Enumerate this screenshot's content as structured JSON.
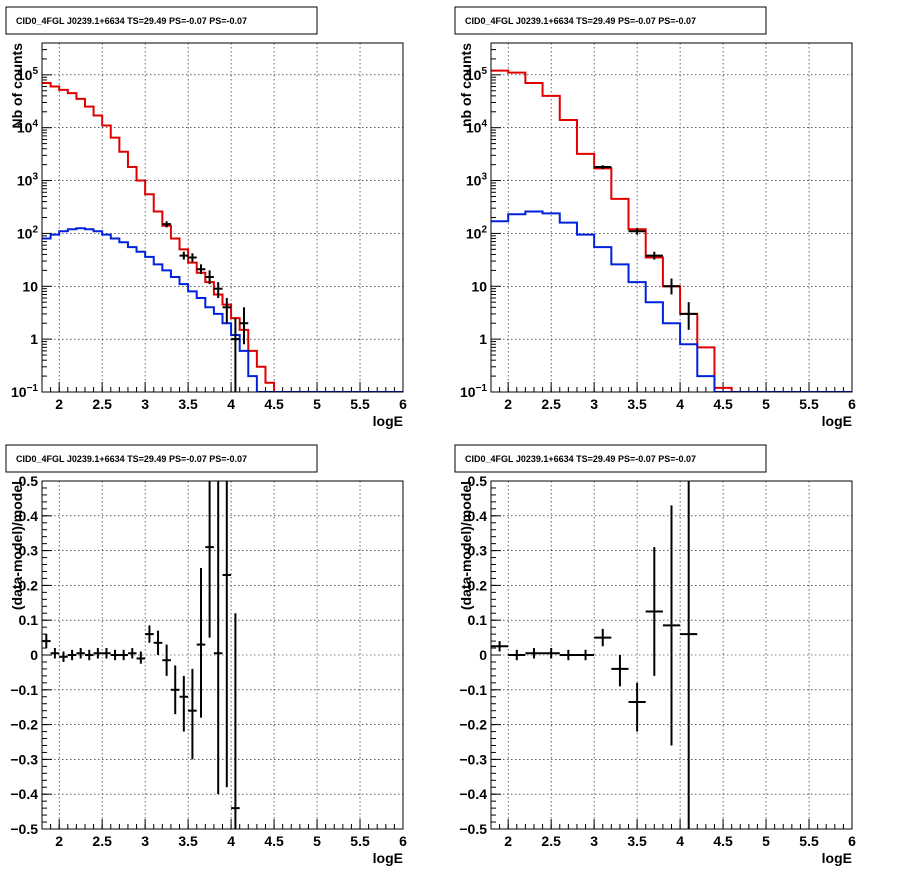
{
  "colors": {
    "data": "#000000",
    "model_total": "#e00000",
    "model_background": "#0022dd"
  },
  "chart_data": [
    {
      "type": "line",
      "title": "CID0_4FGL J0239.1+6634 TS=29.49 PS=-0.07 PS=-0.07",
      "xlabel": "logE",
      "ylabel": "Nb of counts",
      "xlim": [
        1.8,
        6.0
      ],
      "ylim": [
        0.1,
        400000
      ],
      "yscale": "log",
      "grid": true,
      "xticks": [
        "2",
        "2.5",
        "3",
        "3.5",
        "4",
        "4.5",
        "5",
        "5.5",
        "6"
      ],
      "yticks": [
        "10^-1",
        "1",
        "10",
        "10^2",
        "10^3",
        "10^4",
        "10^5"
      ],
      "bin_edges": [
        1.8,
        1.9,
        2.0,
        2.1,
        2.2,
        2.3,
        2.4,
        2.5,
        2.6,
        2.7,
        2.8,
        2.9,
        3.0,
        3.1,
        3.2,
        3.3,
        3.4,
        3.5,
        3.6,
        3.7,
        3.8,
        3.9,
        4.0,
        4.1,
        4.2,
        4.3,
        4.4,
        4.5,
        4.6,
        4.7,
        4.8,
        4.9,
        5.0,
        5.1,
        5.2,
        5.3,
        5.4,
        5.5,
        5.6,
        5.7,
        5.8,
        5.9,
        6.0
      ],
      "series": [
        {
          "role": "model_total",
          "color": "#e00000",
          "values": [
            70000,
            60000,
            52000,
            45000,
            35000,
            25000,
            17000,
            11000,
            6500,
            3500,
            1800,
            1000,
            550,
            260,
            140,
            80,
            50,
            28,
            18,
            12,
            7,
            4.5,
            2.5,
            1.5,
            0.6,
            0.3,
            0.15,
            0.1,
            0.08,
            0.08,
            0.08,
            0.08,
            0.08,
            0.08,
            0.08,
            0.08,
            0.08,
            0.08,
            0.08,
            0.08,
            0.08,
            0.08
          ]
        },
        {
          "role": "model_background",
          "color": "#0022dd",
          "values": [
            80,
            95,
            110,
            120,
            125,
            120,
            110,
            95,
            80,
            68,
            55,
            45,
            36,
            26,
            20,
            15,
            11,
            8,
            6,
            4,
            3,
            2,
            1.2,
            0.6,
            0.2,
            0.08,
            0.08,
            0.08,
            0.08,
            0.08,
            0.08,
            0.08,
            0.08,
            0.08,
            0.08,
            0.08,
            0.08,
            0.08,
            0.08,
            0.08,
            0.08,
            0.08
          ]
        },
        {
          "role": "data",
          "color": "#000000",
          "points": [
            {
              "x": 3.25,
              "y": 150,
              "ylo": 130,
              "yhi": 170
            },
            {
              "x": 3.45,
              "y": 38,
              "ylo": 32,
              "yhi": 45
            },
            {
              "x": 3.55,
              "y": 35,
              "ylo": 29,
              "yhi": 42
            },
            {
              "x": 3.65,
              "y": 21,
              "ylo": 17,
              "yhi": 26
            },
            {
              "x": 3.75,
              "y": 15,
              "ylo": 11,
              "yhi": 20
            },
            {
              "x": 3.85,
              "y": 9,
              "ylo": 6,
              "yhi": 12
            },
            {
              "x": 3.95,
              "y": 4,
              "ylo": 2,
              "yhi": 6
            },
            {
              "x": 4.05,
              "y": 1,
              "ylo": 0.1,
              "yhi": 2.5
            },
            {
              "x": 4.15,
              "y": 2,
              "ylo": 0.8,
              "yhi": 4
            }
          ]
        }
      ]
    },
    {
      "type": "line",
      "title": "CID0_4FGL J0239.1+6634 TS=29.49 PS=-0.07 PS=-0.07",
      "xlabel": "logE",
      "ylabel": "nb of counts",
      "xlim": [
        1.8,
        6.0
      ],
      "ylim": [
        0.1,
        400000
      ],
      "yscale": "log",
      "grid": true,
      "xticks": [
        "2",
        "2.5",
        "3",
        "3.5",
        "4",
        "4.5",
        "5",
        "5.5",
        "6"
      ],
      "yticks": [
        "10^-1",
        "1",
        "10",
        "10^2",
        "10^3",
        "10^4",
        "10^5"
      ],
      "bin_edges": [
        1.8,
        2.0,
        2.2,
        2.4,
        2.6,
        2.8,
        3.0,
        3.2,
        3.4,
        3.6,
        3.8,
        4.0,
        4.2,
        4.4,
        4.6,
        4.8,
        5.0,
        5.2,
        5.4,
        5.6,
        5.8,
        6.0
      ],
      "series": [
        {
          "role": "model_total",
          "color": "#e00000",
          "values": [
            120000,
            110000,
            70000,
            40000,
            14000,
            3200,
            1700,
            450,
            120,
            35,
            10,
            3,
            0.7,
            0.12,
            0.1,
            0.1,
            0.1,
            0.1,
            0.1,
            0.1,
            0.1
          ]
        },
        {
          "role": "model_background",
          "color": "#0022dd",
          "values": [
            170,
            230,
            260,
            240,
            160,
            95,
            55,
            26,
            12,
            5,
            2,
            0.8,
            0.2,
            0.1,
            0.1,
            0.1,
            0.1,
            0.1,
            0.1,
            0.1,
            0.1
          ]
        },
        {
          "role": "data",
          "color": "#000000",
          "points": [
            {
              "x": 3.1,
              "y": 1800,
              "ylo": 1650,
              "yhi": 1950
            },
            {
              "x": 3.5,
              "y": 110,
              "ylo": 95,
              "yhi": 125
            },
            {
              "x": 3.7,
              "y": 38,
              "ylo": 32,
              "yhi": 45
            },
            {
              "x": 3.9,
              "y": 10,
              "ylo": 7,
              "yhi": 14
            },
            {
              "x": 4.1,
              "y": 3,
              "ylo": 1.5,
              "yhi": 5
            }
          ]
        }
      ]
    },
    {
      "type": "scatter",
      "title": "CID0_4FGL J0239.1+6634 TS=29.49 PS=-0.07 PS=-0.07",
      "xlabel": "logE",
      "ylabel": "(data-model)/model",
      "xlim": [
        1.8,
        6.0
      ],
      "ylim": [
        -0.5,
        0.5
      ],
      "grid": true,
      "xticks": [
        "2",
        "2.5",
        "3",
        "3.5",
        "4",
        "4.5",
        "5",
        "5.5",
        "6"
      ],
      "yticks": [
        "−0.5",
        "−0.4",
        "−0.3",
        "−0.2",
        "−0.1",
        "0",
        "0.1",
        "0.2",
        "0.3",
        "0.4",
        "0.5"
      ],
      "xerr": 0.05,
      "points": [
        {
          "x": 1.85,
          "y": 0.04,
          "ylo": 0.02,
          "yhi": 0.06
        },
        {
          "x": 1.95,
          "y": 0.005,
          "ylo": -0.01,
          "yhi": 0.02
        },
        {
          "x": 2.05,
          "y": -0.005,
          "ylo": -0.02,
          "yhi": 0.01
        },
        {
          "x": 2.15,
          "y": 0.0,
          "ylo": -0.015,
          "yhi": 0.015
        },
        {
          "x": 2.25,
          "y": 0.005,
          "ylo": -0.01,
          "yhi": 0.02
        },
        {
          "x": 2.35,
          "y": 0.0,
          "ylo": -0.015,
          "yhi": 0.015
        },
        {
          "x": 2.45,
          "y": 0.005,
          "ylo": -0.01,
          "yhi": 0.02
        },
        {
          "x": 2.55,
          "y": 0.005,
          "ylo": -0.01,
          "yhi": 0.02
        },
        {
          "x": 2.65,
          "y": 0.0,
          "ylo": -0.015,
          "yhi": 0.015
        },
        {
          "x": 2.75,
          "y": 0.0,
          "ylo": -0.015,
          "yhi": 0.015
        },
        {
          "x": 2.85,
          "y": 0.005,
          "ylo": -0.01,
          "yhi": 0.02
        },
        {
          "x": 2.95,
          "y": -0.01,
          "ylo": -0.025,
          "yhi": 0.01
        },
        {
          "x": 3.05,
          "y": 0.06,
          "ylo": 0.035,
          "yhi": 0.085
        },
        {
          "x": 3.15,
          "y": 0.035,
          "ylo": 0.0,
          "yhi": 0.07
        },
        {
          "x": 3.25,
          "y": -0.015,
          "ylo": -0.06,
          "yhi": 0.03
        },
        {
          "x": 3.35,
          "y": -0.1,
          "ylo": -0.17,
          "yhi": -0.03
        },
        {
          "x": 3.45,
          "y": -0.12,
          "ylo": -0.22,
          "yhi": -0.06
        },
        {
          "x": 3.55,
          "y": -0.16,
          "ylo": -0.3,
          "yhi": -0.04
        },
        {
          "x": 3.65,
          "y": 0.03,
          "ylo": -0.18,
          "yhi": 0.25
        },
        {
          "x": 3.75,
          "y": 0.31,
          "ylo": 0.05,
          "yhi": 0.5
        },
        {
          "x": 3.85,
          "y": 0.005,
          "ylo": -0.4,
          "yhi": 0.5
        },
        {
          "x": 3.95,
          "y": 0.23,
          "ylo": -0.38,
          "yhi": 0.5
        },
        {
          "x": 4.05,
          "y": -0.44,
          "ylo": -0.5,
          "yhi": 0.12
        }
      ]
    },
    {
      "type": "scatter",
      "title": "CID0_4FGL J0239.1+6634 TS=29.49 PS=-0.07 PS=-0.07",
      "xlabel": "logE",
      "ylabel": "(data-model)/model",
      "xlim": [
        1.8,
        6.0
      ],
      "ylim": [
        -0.5,
        0.5
      ],
      "grid": true,
      "xticks": [
        "2",
        "2.5",
        "3",
        "3.5",
        "4",
        "4.5",
        "5",
        "5.5",
        "6"
      ],
      "yticks": [
        "−0.5",
        "−0.4",
        "−0.3",
        "−0.2",
        "−0.1",
        "0",
        "0.1",
        "0.2",
        "0.3",
        "0.4",
        "0.5"
      ],
      "xerr": 0.1,
      "points": [
        {
          "x": 1.9,
          "y": 0.025,
          "ylo": 0.01,
          "yhi": 0.04
        },
        {
          "x": 2.1,
          "y": 0.0,
          "ylo": -0.015,
          "yhi": 0.015
        },
        {
          "x": 2.3,
          "y": 0.005,
          "ylo": -0.01,
          "yhi": 0.02
        },
        {
          "x": 2.5,
          "y": 0.005,
          "ylo": -0.01,
          "yhi": 0.02
        },
        {
          "x": 2.7,
          "y": 0.0,
          "ylo": -0.015,
          "yhi": 0.015
        },
        {
          "x": 2.9,
          "y": 0.0,
          "ylo": -0.015,
          "yhi": 0.015
        },
        {
          "x": 3.1,
          "y": 0.05,
          "ylo": 0.025,
          "yhi": 0.075
        },
        {
          "x": 3.3,
          "y": -0.04,
          "ylo": -0.09,
          "yhi": 0.0
        },
        {
          "x": 3.5,
          "y": -0.135,
          "ylo": -0.22,
          "yhi": -0.08
        },
        {
          "x": 3.7,
          "y": 0.125,
          "ylo": -0.06,
          "yhi": 0.31
        },
        {
          "x": 3.9,
          "y": 0.085,
          "ylo": -0.26,
          "yhi": 0.43
        },
        {
          "x": 4.1,
          "y": 0.06,
          "ylo": -0.5,
          "yhi": 0.5
        }
      ]
    }
  ]
}
